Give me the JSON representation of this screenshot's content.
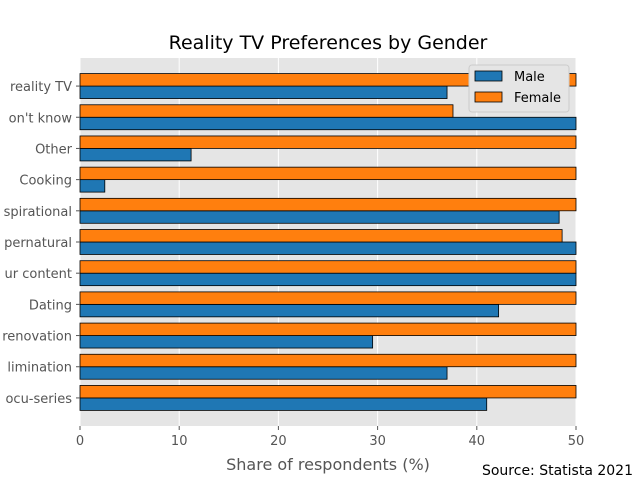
{
  "chart_data": {
    "type": "bar",
    "orientation": "horizontal",
    "title": "Reality TV Preferences by Gender",
    "xlabel": "Share of respondents (%)",
    "ylabel": "",
    "xlim": [
      0,
      50
    ],
    "xticks": [
      0,
      10,
      20,
      30,
      40,
      50
    ],
    "grid": true,
    "legend_position": "top-right",
    "source": "Source: Statista 2021",
    "categories": [
      "ocu-series",
      "limination",
      "renovation",
      "Dating",
      "ur content",
      "pernatural",
      "spirational",
      "Cooking",
      "Other",
      "on't know",
      "reality TV"
    ],
    "series": [
      {
        "name": "Male",
        "color": "#1f77b4",
        "values": [
          41,
          37,
          29.5,
          42.2,
          50,
          50,
          48.3,
          2.5,
          11.2,
          50,
          37
        ]
      },
      {
        "name": "Female",
        "color": "#ff7f0e",
        "values": [
          50,
          50,
          50,
          50,
          50,
          48.6,
          50,
          50,
          50,
          37.6,
          50
        ]
      }
    ]
  }
}
